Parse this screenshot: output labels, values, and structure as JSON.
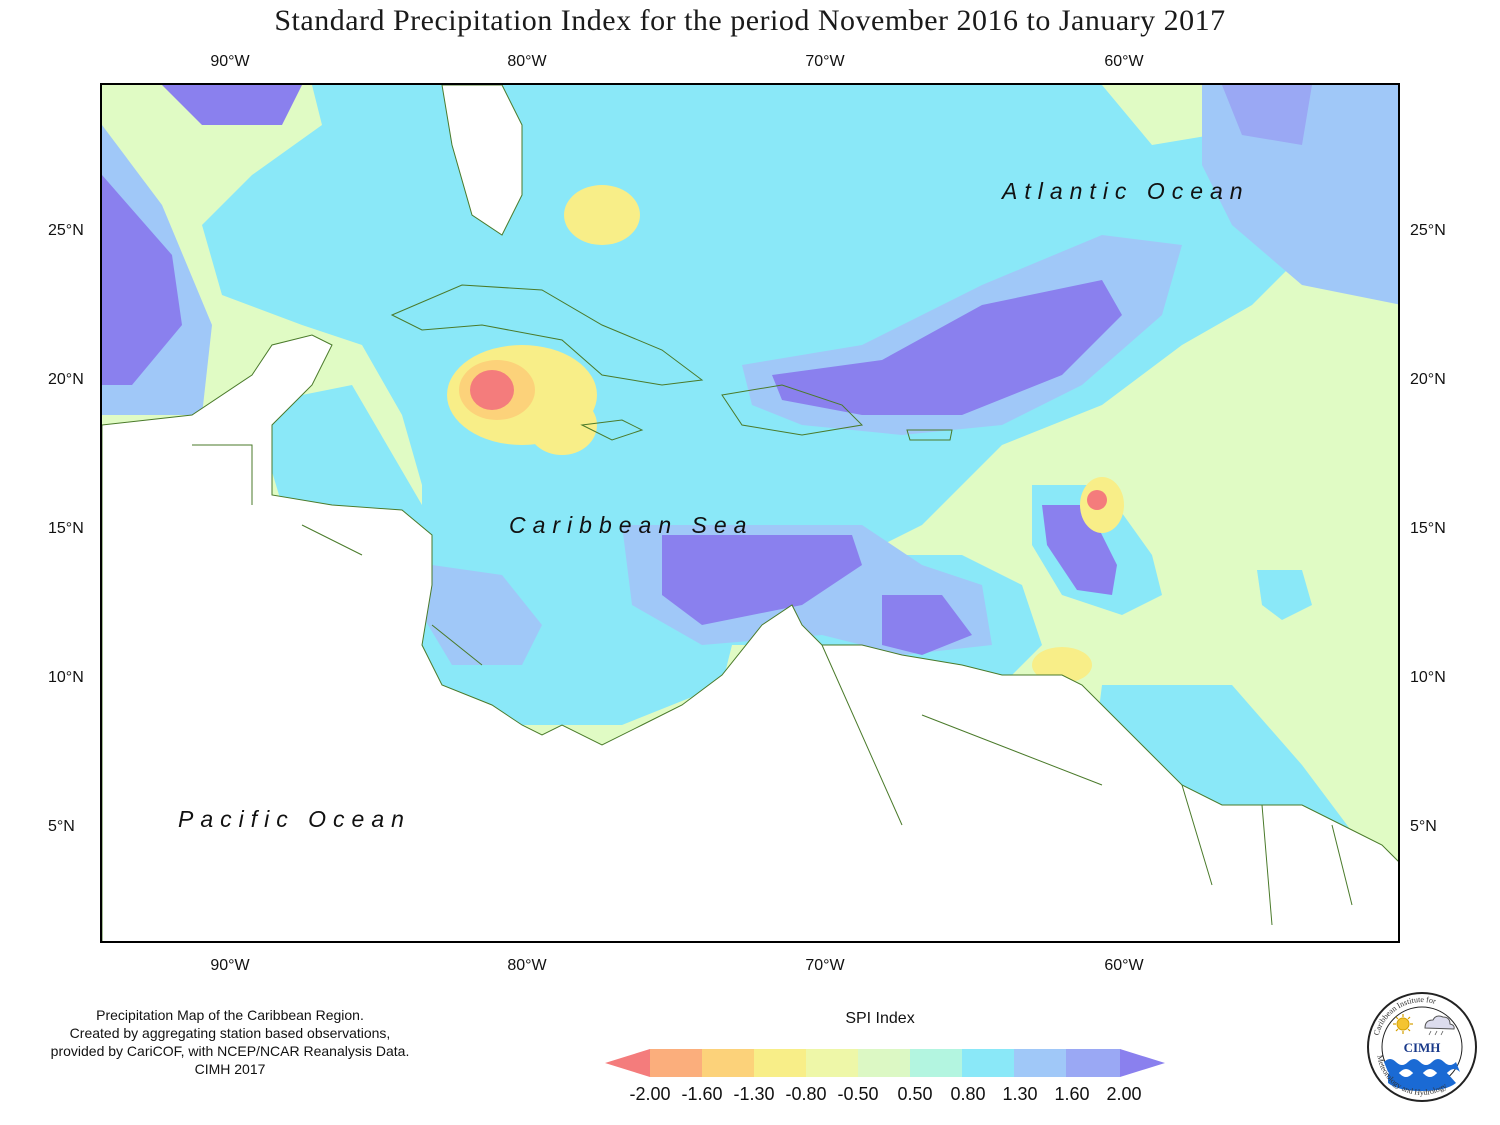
{
  "title": "Standard Precipitation Index for the period November 2016 to January 2017",
  "longitude_ticks": [
    "90°W",
    "80°W",
    "70°W",
    "60°W"
  ],
  "latitude_ticks": [
    "25°N",
    "20°N",
    "15°N",
    "10°N",
    "5°N"
  ],
  "ocean_labels": {
    "atlantic": "Atlantic Ocean",
    "caribbean": "Caribbean Sea",
    "pacific": "Pacific Ocean"
  },
  "credits": [
    "Precipitation Map of the Caribbean Region.",
    "Created by aggregating station based observations,",
    "provided by CariCOF, with NCEP/NCAR Reanalysis Data.",
    "CIMH 2017"
  ],
  "legend": {
    "title": "SPI Index",
    "breaks": [
      "-2.00",
      "-1.60",
      "-1.30",
      "-0.80",
      "-0.50",
      "0.50",
      "0.80",
      "1.30",
      "1.60",
      "2.00"
    ],
    "colors": [
      "#f47c7c",
      "#fbae7c",
      "#fcd27a",
      "#f8ee88",
      "#eef7a8",
      "#dcf8c4",
      "#b3f5e0",
      "#8ae8f8",
      "#a0c8f8",
      "#9aa8f4",
      "#8a80ee"
    ]
  },
  "logo": {
    "text": "CIMH",
    "ring_top": "Caribbean Institute for",
    "ring_bottom": "Meteorology and Hydrology"
  }
}
